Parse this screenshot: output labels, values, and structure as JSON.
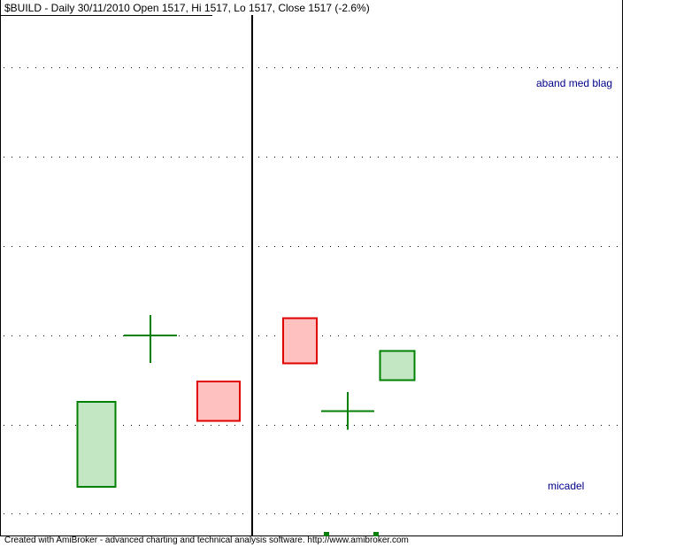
{
  "header": {
    "title": "$BUILD - Daily 30/11/2010 Open 1517, Hi 1517, Lo 1517, Close 1517 (-2.6%)"
  },
  "annotations": {
    "top_label": "aband med blag",
    "bottom_label": "micadel"
  },
  "footer": {
    "credit": "Created with AmiBroker - advanced charting and technical analysis software. http://www.amibroker.com"
  },
  "colors": {
    "up_fill": "#c3e6c3",
    "up_stroke": "#008000",
    "down_fill": "#ffc0c0",
    "down_stroke": "#e00000",
    "doji": "#008000",
    "annotation": "#00008b",
    "grid": "#000000"
  },
  "chart_data": {
    "type": "candlestick",
    "price_scale_labels": "not shown",
    "grid": "horizontal dotted",
    "candles": [
      {
        "type": "bull",
        "open": 60,
        "close": 252,
        "high": 252,
        "low": 60
      },
      {
        "type": "doji",
        "open": 402,
        "close": 402,
        "high": 448,
        "low": 340
      },
      {
        "type": "bear",
        "open": 298,
        "close": 209,
        "high": 298,
        "low": 209
      },
      {
        "type": "bear",
        "open": 441,
        "close": 339,
        "high": 441,
        "low": 339
      },
      {
        "type": "doji",
        "open": 231,
        "close": 231,
        "high": 274,
        "low": 189
      },
      {
        "type": "bull",
        "open": 301,
        "close": 367,
        "high": 367,
        "low": 301
      }
    ],
    "markers": [
      {
        "candle": 4,
        "shape": "square"
      },
      {
        "candle": 5,
        "shape": "square"
      }
    ]
  }
}
